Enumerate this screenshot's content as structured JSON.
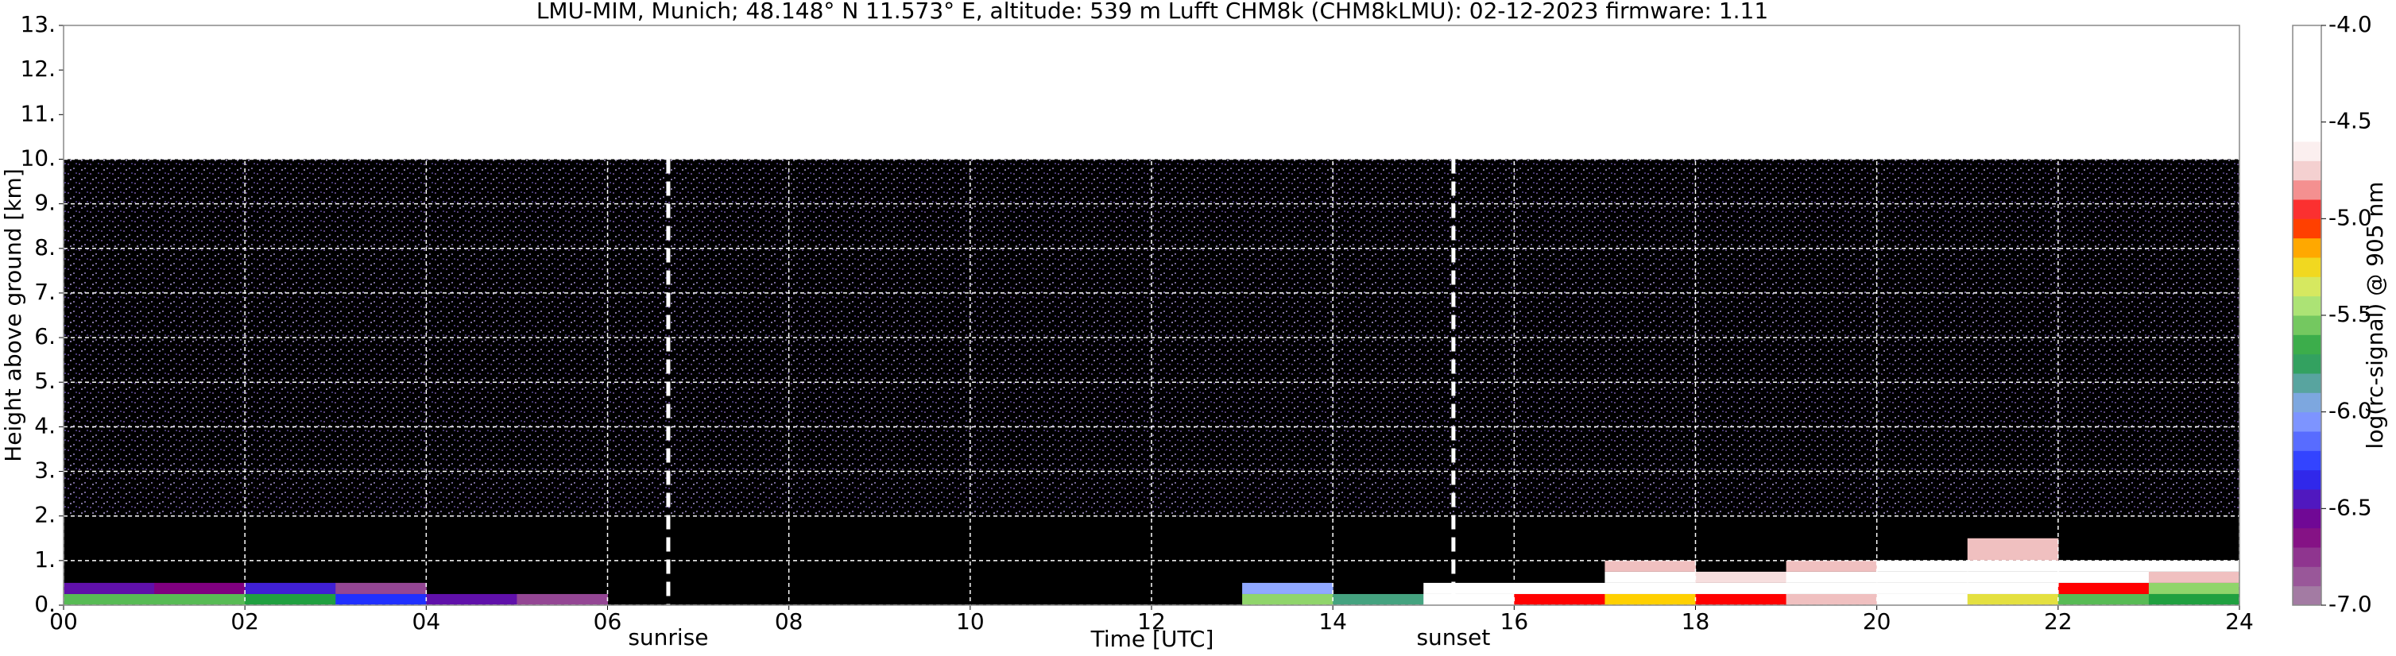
{
  "chart_data": {
    "type": "heatmap",
    "title": "LMU-MIM, Munich; 48.148° N 11.573° E, altitude: 539 m    Lufft CHM8k (CHM8kLMU): 02-12-2023    firmware: 1.11",
    "x_label": "Time [UTC]",
    "y_label": "Height above ground [km]",
    "colorbar_label": "log(rc-signal) @ 905 nm",
    "xlim": [
      0,
      24
    ],
    "ylim": [
      0,
      13
    ],
    "xticks": [
      {
        "value": 0,
        "label": "00"
      },
      {
        "value": 2,
        "label": "02"
      },
      {
        "value": 4,
        "label": "04"
      },
      {
        "value": 6,
        "label": "06"
      },
      {
        "value": 8,
        "label": "08"
      },
      10,
      12,
      14,
      16,
      18,
      20,
      22,
      24
    ],
    "yticks": [
      {
        "value": 0,
        "label": "0."
      },
      {
        "value": 1,
        "label": "1."
      },
      {
        "value": 2,
        "label": "2."
      },
      {
        "value": 3,
        "label": "3."
      },
      {
        "value": 4,
        "label": "4."
      },
      {
        "value": 5,
        "label": "5."
      },
      {
        "value": 6,
        "label": "6."
      },
      {
        "value": 7,
        "label": "7."
      },
      {
        "value": 8,
        "label": "8."
      },
      {
        "value": 9,
        "label": "9."
      },
      {
        "value": 10,
        "label": "10."
      },
      {
        "value": 11,
        "label": "11."
      },
      {
        "value": 12,
        "label": "12."
      },
      {
        "value": 13,
        "label": "13."
      }
    ],
    "clim": [
      -7,
      -4
    ],
    "cticks": [
      {
        "value": -4,
        "label": "-4.0"
      },
      {
        "value": -4.5,
        "label": "-4.5"
      },
      {
        "value": -5,
        "label": "-5.0"
      },
      {
        "value": -5.5,
        "label": "-5.5"
      },
      {
        "value": -6,
        "label": "-6.0"
      },
      {
        "value": -6.5,
        "label": "-6.5"
      },
      {
        "value": -7,
        "label": "-7.0"
      }
    ],
    "colorscale": [
      [
        -7,
        "#a88ca8"
      ],
      [
        -6.6,
        "#800080"
      ],
      [
        -6.3,
        "#2030ff"
      ],
      [
        -6.0,
        "#90a8ff"
      ],
      [
        -5.7,
        "#20a040"
      ],
      [
        -5.4,
        "#c8f080"
      ],
      [
        -5.2,
        "#ffd000"
      ],
      [
        -5.1,
        "#ff8000"
      ],
      [
        -5.0,
        "#ff0000"
      ],
      [
        -4.8,
        "#f0c0c0"
      ],
      [
        -4.6,
        "#ffffff"
      ],
      [
        -4,
        "#ffffff"
      ]
    ],
    "measured_top": 10,
    "grid": true,
    "x_edges": [
      0,
      1,
      2,
      3,
      4,
      5,
      6,
      7,
      8,
      9,
      10,
      11,
      12,
      13,
      14,
      15,
      16,
      17,
      18,
      19,
      20,
      21,
      22,
      23,
      24
    ],
    "y_edges": [
      0,
      0.25,
      0.5,
      0.75,
      1.0,
      1.5
    ],
    "values": [
      [
        -5.6,
        -5.6,
        -5.7,
        -6.3,
        -6.5,
        -6.8,
        null,
        null,
        null,
        null,
        null,
        null,
        null,
        -5.5,
        -5.8,
        -4.3,
        -5.0,
        -5.2,
        -5.0,
        -4.8,
        -4.6,
        -5.3,
        -5.6,
        -5.7
      ],
      [
        -6.5,
        -6.6,
        -6.4,
        -6.8,
        null,
        null,
        null,
        null,
        null,
        null,
        null,
        null,
        null,
        -6.0,
        null,
        -4.5,
        -4.4,
        -4.6,
        -4.5,
        -4.4,
        -4.3,
        -4.5,
        -5.0,
        -5.5
      ],
      [
        null,
        null,
        null,
        null,
        null,
        null,
        null,
        null,
        null,
        null,
        null,
        null,
        null,
        null,
        null,
        null,
        null,
        -4.6,
        -4.7,
        -4.5,
        -4.4,
        -4.3,
        -4.4,
        -4.8
      ],
      [
        null,
        null,
        null,
        null,
        null,
        null,
        null,
        null,
        null,
        null,
        null,
        null,
        null,
        null,
        null,
        null,
        null,
        -4.8,
        null,
        -4.8,
        -4.6,
        -4.3,
        -4.4,
        -4.6
      ],
      [
        null,
        null,
        null,
        null,
        null,
        null,
        null,
        null,
        null,
        null,
        null,
        null,
        null,
        null,
        null,
        null,
        null,
        null,
        null,
        null,
        null,
        -4.8,
        null,
        null
      ]
    ],
    "annotations": [
      {
        "text": "sunrise",
        "x": 6.67
      },
      {
        "text": "sunset",
        "x": 15.33
      }
    ]
  }
}
